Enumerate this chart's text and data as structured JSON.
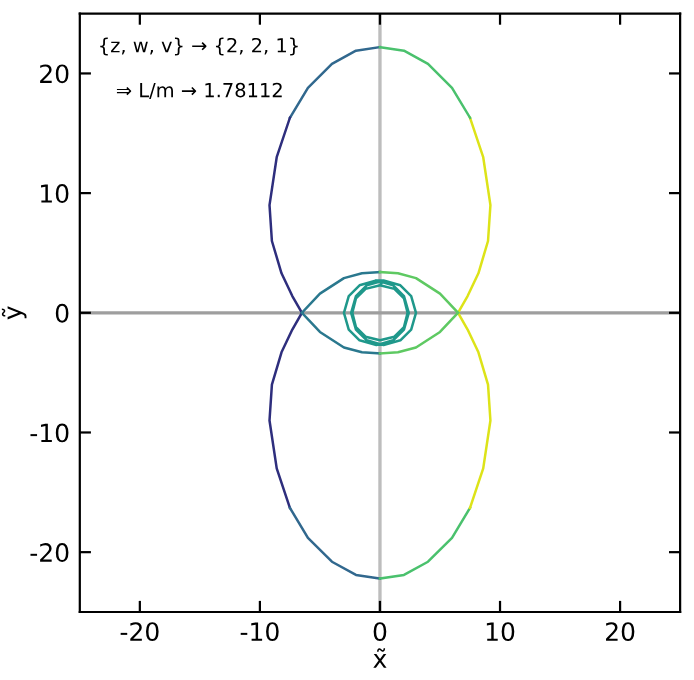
{
  "chart_data": {
    "type": "line",
    "xlabel": "x̃",
    "ylabel": "ỹ",
    "xlim": [
      -25,
      25
    ],
    "ylim": [
      -25,
      25
    ],
    "xticks": [
      -20,
      -10,
      0,
      10,
      20
    ],
    "yticks": [
      -20,
      -10,
      0,
      10,
      20
    ],
    "grid": false,
    "legend": false,
    "marker": "none",
    "line_style": "solid",
    "annotations": [
      "{z, w, v} → {2, 2, 1}",
      "⇒ L/m → 1.78112"
    ],
    "ref_lines": [
      {
        "axis": "x",
        "value": 0,
        "color": "#bdbdbd"
      },
      {
        "axis": "y",
        "value": 0,
        "color": "#9e9e9e"
      }
    ],
    "series": [
      {
        "color": "#31688e",
        "x": [
          0,
          -2,
          -4,
          -6,
          -7.5
        ],
        "values": [
          22.2,
          21.9,
          20.8,
          18.8,
          16.3
        ]
      },
      {
        "color": "#2e2e7d",
        "x": [
          -7.5,
          -8.6,
          -9.2,
          -9,
          -8.2,
          -7.3,
          -6.5
        ],
        "values": [
          16.3,
          13,
          9,
          6,
          3.3,
          1.4,
          0
        ]
      },
      {
        "color": "#2e2e7d",
        "x": [
          -6.5,
          -7.3,
          -8.2,
          -9,
          -9.2,
          -8.6,
          -7.5
        ],
        "values": [
          0,
          -1.4,
          -3.3,
          -6,
          -9,
          -13,
          -16.3
        ]
      },
      {
        "color": "#31688e",
        "x": [
          -7.5,
          -6,
          -4,
          -2,
          0
        ],
        "values": [
          -16.3,
          -18.8,
          -20.8,
          -21.9,
          -22.2
        ]
      },
      {
        "color": "#4ac16d",
        "x": [
          0,
          2,
          4,
          6,
          7.5
        ],
        "values": [
          -22.2,
          -21.9,
          -20.8,
          -18.8,
          -16.3
        ]
      },
      {
        "color": "#dde318",
        "x": [
          7.5,
          8.6,
          9.2,
          9,
          8.2,
          7.3,
          6.5
        ],
        "values": [
          -16.3,
          -13,
          -9,
          -6,
          -3.3,
          -1.4,
          0
        ]
      },
      {
        "color": "#dde318",
        "x": [
          6.5,
          7.3,
          8.2,
          9,
          9.2,
          8.6,
          7.5
        ],
        "values": [
          0,
          1.4,
          3.3,
          6,
          9,
          13,
          16.3
        ]
      },
      {
        "color": "#4ac16d",
        "x": [
          7.5,
          6,
          4,
          2,
          0
        ],
        "values": [
          16.3,
          18.8,
          20.8,
          21.9,
          22.2
        ]
      },
      {
        "color": "#2a788e",
        "x": [
          -6.5,
          -5,
          -3,
          -1.5,
          0
        ],
        "values": [
          0,
          1.6,
          2.9,
          3.3,
          3.4
        ]
      },
      {
        "color": "#5ec962",
        "x": [
          0,
          1.5,
          3,
          5,
          6.5
        ],
        "values": [
          3.4,
          3.3,
          2.9,
          1.6,
          0
        ]
      },
      {
        "color": "#2a788e",
        "x": [
          -6.5,
          -5,
          -3,
          -1.5,
          0
        ],
        "values": [
          0,
          -1.6,
          -2.9,
          -3.3,
          -3.4
        ]
      },
      {
        "color": "#5ec962",
        "x": [
          0,
          1.5,
          3,
          5,
          6.5
        ],
        "values": [
          -3.4,
          -3.3,
          -2.9,
          -1.6,
          0
        ]
      },
      {
        "color": "#1f988b",
        "x": [
          -0.3,
          1.1,
          2.0,
          2.4,
          2.0,
          1.1,
          -0.3,
          -1.7,
          -2.6,
          -3.0,
          -2.6,
          -1.7,
          -0.3,
          0.3,
          1.7,
          2.6,
          3.0,
          2.6,
          1.7,
          0.3,
          -1.1,
          -2.0,
          -2.4,
          -2.0,
          -1.1,
          0.3,
          0,
          1.2,
          2.0,
          2.3,
          2.0,
          1.2,
          0,
          -1.2,
          -2.0,
          -2.3,
          -2.0,
          -1.2,
          0
        ],
        "values": [
          2.7,
          2.3,
          1.4,
          0,
          -1.4,
          -2.3,
          -2.7,
          -2.3,
          -1.4,
          0,
          1.4,
          2.3,
          2.7,
          2.7,
          2.3,
          1.4,
          0,
          -1.4,
          -2.3,
          -2.7,
          -2.3,
          -1.4,
          0,
          1.4,
          2.3,
          2.7,
          2.3,
          2.0,
          1.2,
          0,
          -1.2,
          -2.0,
          -2.3,
          -2.0,
          -1.2,
          0,
          1.2,
          2.0,
          2.3
        ]
      }
    ]
  }
}
